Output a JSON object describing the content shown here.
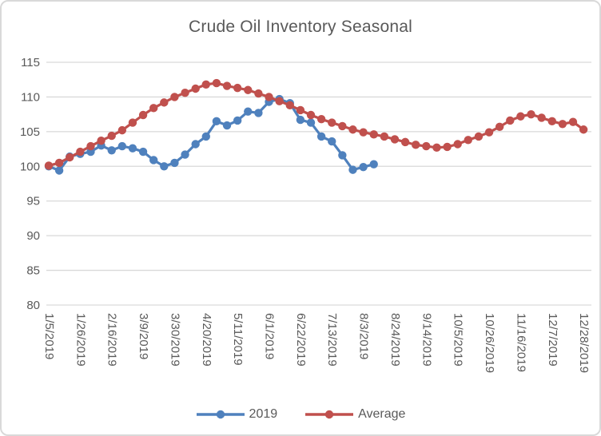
{
  "chart_data": {
    "type": "line",
    "title": "Crude Oil Inventory Seasonal",
    "categories": [
      "1/5/2019",
      "1/12/2019",
      "1/19/2019",
      "1/26/2019",
      "2/2/2019",
      "2/9/2019",
      "2/16/2019",
      "2/23/2019",
      "3/2/2019",
      "3/9/2019",
      "3/16/2019",
      "3/23/2019",
      "3/30/2019",
      "4/6/2019",
      "4/13/2019",
      "4/20/2019",
      "4/27/2019",
      "5/4/2019",
      "5/11/2019",
      "5/18/2019",
      "5/25/2019",
      "6/1/2019",
      "6/8/2019",
      "6/15/2019",
      "6/22/2019",
      "6/29/2019",
      "7/6/2019",
      "7/13/2019",
      "7/20/2019",
      "7/27/2019",
      "8/3/2019",
      "8/10/2019",
      "8/17/2019",
      "8/24/2019",
      "8/31/2019",
      "9/7/2019",
      "9/14/2019",
      "9/21/2019",
      "9/28/2019",
      "10/5/2019",
      "10/12/2019",
      "10/19/2019",
      "10/26/2019",
      "11/2/2019",
      "11/9/2019",
      "11/16/2019",
      "11/23/2019",
      "11/30/2019",
      "12/7/2019",
      "12/14/2019",
      "12/21/2019",
      "12/28/2019"
    ],
    "x_tick_every": 3,
    "x_tick_labels": [
      "1/5/2019",
      "1/26/2019",
      "2/16/2019",
      "3/9/2019",
      "3/30/2019",
      "4/20/2019",
      "5/11/2019",
      "6/1/2019",
      "6/22/2019",
      "7/13/2019",
      "8/3/2019",
      "8/24/2019",
      "9/14/2019",
      "10/5/2019",
      "10/26/2019",
      "11/16/2019",
      "12/7/2019",
      "12/28/2019"
    ],
    "ylim": [
      80,
      115
    ],
    "y_tick_step": 5,
    "y_tick_labels": [
      "80",
      "85",
      "90",
      "95",
      "100",
      "105",
      "110",
      "115"
    ],
    "grid": true,
    "legend_position": "bottom",
    "series": [
      {
        "name": "2019",
        "color": "#4F81BD",
        "values": [
          100.0,
          99.4,
          101.4,
          101.8,
          102.1,
          103.0,
          102.3,
          102.9,
          102.6,
          102.1,
          100.9,
          100.0,
          100.5,
          101.7,
          103.2,
          104.3,
          106.5,
          105.9,
          106.6,
          107.9,
          107.7,
          109.3,
          109.7,
          109.1,
          106.7,
          106.3,
          104.3,
          103.6,
          101.6,
          99.5,
          99.9,
          100.3
        ]
      },
      {
        "name": "Average",
        "color": "#C0504D",
        "values": [
          100.1,
          100.5,
          101.3,
          102.1,
          102.9,
          103.7,
          104.4,
          105.2,
          106.3,
          107.4,
          108.4,
          109.2,
          110.0,
          110.6,
          111.2,
          111.8,
          112.0,
          111.6,
          111.3,
          111.0,
          110.5,
          110.0,
          109.4,
          108.8,
          108.1,
          107.4,
          106.8,
          106.3,
          105.8,
          105.3,
          104.9,
          104.6,
          104.3,
          103.9,
          103.5,
          103.1,
          102.9,
          102.7,
          102.8,
          103.2,
          103.8,
          104.3,
          104.9,
          105.7,
          106.6,
          107.2,
          107.5,
          107.0,
          106.5,
          106.1,
          106.4,
          105.3
        ]
      }
    ]
  },
  "colors": {
    "text": "#595959",
    "gridline": "#D9D9D9",
    "frame_border": "#D9D9D9",
    "background": "#FFFFFF"
  }
}
